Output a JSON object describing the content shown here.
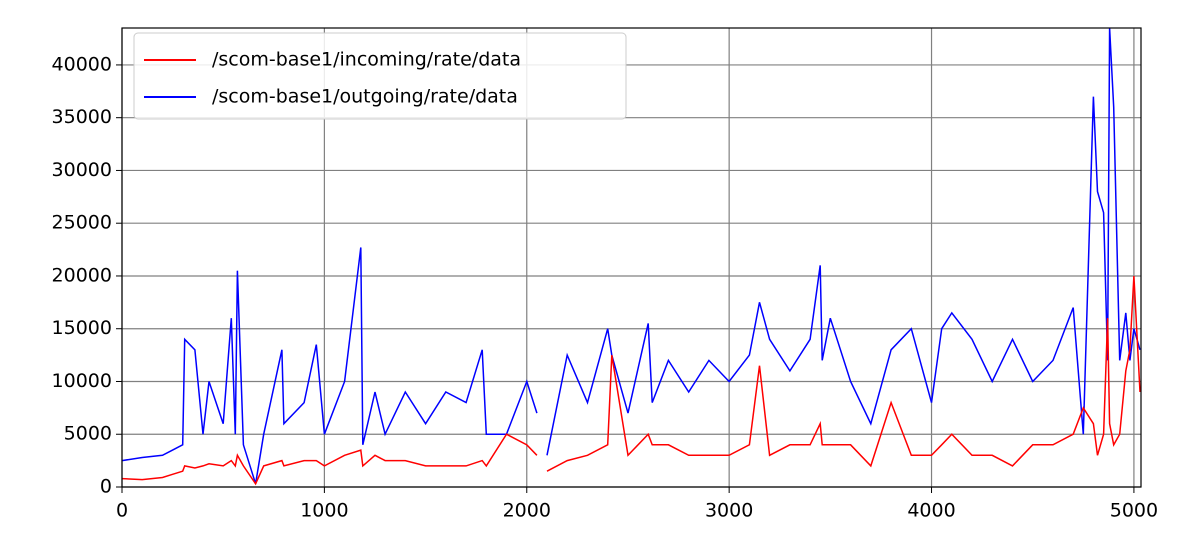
{
  "chart_data": {
    "type": "line",
    "x": [
      0,
      100,
      200,
      250,
      300,
      310,
      360,
      400,
      430,
      500,
      540,
      560,
      570,
      600,
      660,
      700,
      790,
      800,
      900,
      960,
      1000,
      1100,
      1180,
      1190,
      1250,
      1300,
      1400,
      1500,
      1600,
      1700,
      1780,
      1800,
      1900,
      2000,
      2050,
      2080,
      2100,
      2200,
      2300,
      2400,
      2420,
      2500,
      2600,
      2620,
      2700,
      2800,
      2900,
      3000,
      3100,
      3150,
      3200,
      3300,
      3400,
      3450,
      3460,
      3500,
      3600,
      3700,
      3800,
      3900,
      4000,
      4050,
      4100,
      4200,
      4300,
      4400,
      4500,
      4600,
      4700,
      4750,
      4800,
      4820,
      4850,
      4870,
      4880,
      4900,
      4930,
      4960,
      4980,
      5000,
      5030
    ],
    "series": [
      {
        "name": "/scom-base1/outgoing/rate/data",
        "color": "#0000ff",
        "values": [
          2500,
          2800,
          3000,
          3500,
          4000,
          14000,
          13000,
          5000,
          10000,
          6000,
          16000,
          5000,
          20500,
          4000,
          300,
          5000,
          13000,
          6000,
          8000,
          13500,
          5000,
          10000,
          22700,
          4000,
          9000,
          5000,
          9000,
          6000,
          9000,
          8000,
          13000,
          5000,
          5000,
          10000,
          7000,
          null,
          3000,
          12500,
          8000,
          15000,
          12500,
          7000,
          15500,
          8000,
          12000,
          9000,
          12000,
          10000,
          12500,
          17500,
          14000,
          11000,
          14000,
          21000,
          12000,
          16000,
          10000,
          6000,
          13000,
          15000,
          8000,
          15000,
          16500,
          14000,
          10000,
          14000,
          10000,
          12000,
          17000,
          5000,
          37000,
          28000,
          26000,
          12000,
          43500,
          36000,
          12000,
          16500,
          12000,
          15000,
          13000
        ]
      },
      {
        "name": "/scom-base1/incoming/rate/data",
        "color": "#ff0000",
        "values": [
          800,
          700,
          900,
          1200,
          1500,
          2000,
          1800,
          2000,
          2200,
          2000,
          2500,
          2000,
          3000,
          2000,
          300,
          2000,
          2500,
          2000,
          2500,
          2500,
          2000,
          3000,
          3500,
          2000,
          3000,
          2500,
          2500,
          2000,
          2000,
          2000,
          2500,
          2000,
          5000,
          4000,
          3000,
          null,
          1500,
          2500,
          3000,
          4000,
          12500,
          3000,
          5000,
          4000,
          4000,
          3000,
          3000,
          3000,
          4000,
          11500,
          3000,
          4000,
          4000,
          6000,
          4000,
          4000,
          4000,
          2000,
          8000,
          3000,
          3000,
          4000,
          5000,
          3000,
          3000,
          2000,
          4000,
          4000,
          5000,
          7500,
          6000,
          3000,
          5000,
          16000,
          6000,
          4000,
          5000,
          11000,
          13000,
          20000,
          9000
        ]
      }
    ],
    "xlim": [
      0,
      5035
    ],
    "ylim": [
      0,
      43500
    ],
    "xticks": [
      0,
      1000,
      2000,
      3000,
      4000,
      5000
    ],
    "yticks": [
      0,
      5000,
      10000,
      15000,
      20000,
      25000,
      30000,
      35000,
      40000
    ],
    "grid": true,
    "legend": "upper-left"
  }
}
